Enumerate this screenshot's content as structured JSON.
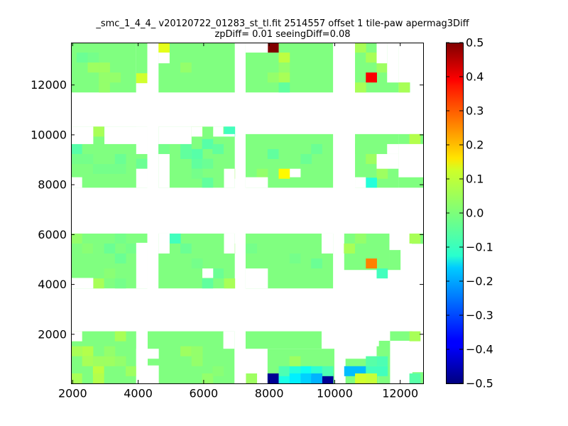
{
  "chart_data": {
    "type": "heatmap",
    "title": "_smc_1_4_4_ v20120722_01283_st_tl.fit 2514557 offset 1 tile-paw apermag3Diff",
    "subtitle": "zpDiff= 0.01 seeingDiff=0.08",
    "xlim": [
      1950,
      12700
    ],
    "ylim": [
      30,
      13700
    ],
    "x_ticks": [
      2000,
      4000,
      6000,
      8000,
      10000,
      12000
    ],
    "y_ticks": [
      2000,
      4000,
      6000,
      8000,
      10000,
      12000
    ],
    "cell_size": [
      340,
      400
    ],
    "colorbar": {
      "range": [
        -0.5,
        0.5
      ],
      "ticks": [
        0.5,
        0.4,
        0.3,
        0.2,
        0.1,
        0.0,
        -0.1,
        -0.2,
        -0.3,
        -0.4,
        -0.5
      ],
      "tick_labels": [
        "0.5",
        "0.4",
        "0.3",
        "0.2",
        "0.1",
        "0.0",
        "−0.1",
        "−0.2",
        "−0.3",
        "−0.4",
        "−0.5"
      ],
      "colormap": "jet"
    },
    "grid": false,
    "background_value": 0.0,
    "coverage": [
      {
        "x": [
          1950,
          3940
        ],
        "y": [
          30,
          2120
        ]
      },
      {
        "x": [
          4290,
          6940
        ],
        "y": [
          30,
          2120
        ]
      },
      {
        "x": [
          7950,
          9990
        ],
        "y": [
          30,
          1420
        ]
      },
      {
        "x": [
          7280,
          9600
        ],
        "y": [
          1420,
          2120
        ]
      },
      {
        "x": [
          10330,
          11350
        ],
        "y": [
          30,
          1020
        ]
      },
      {
        "x": [
          11350,
          11690
        ],
        "y": [
          30,
          1740
        ]
      },
      {
        "x": [
          11690,
          12370
        ],
        "y": [
          1740,
          2120
        ]
      },
      {
        "x": [
          12370,
          12700
        ],
        "y": [
          30,
          480
        ]
      },
      {
        "x": [
          1950,
          4280
        ],
        "y": [
          3840,
          6040
        ]
      },
      {
        "x": [
          4620,
          6950
        ],
        "y": [
          3840,
          6040
        ]
      },
      {
        "x": [
          7280,
          9950
        ],
        "y": [
          3840,
          6040
        ]
      },
      {
        "x": [
          10290,
          11670
        ],
        "y": [
          4580,
          6040
        ]
      },
      {
        "x": [
          11670,
          12010
        ],
        "y": [
          4580,
          5380
        ]
      },
      {
        "x": [
          12350,
          12700
        ],
        "y": [
          5630,
          6040
        ]
      },
      {
        "x": [
          1950,
          4280
        ],
        "y": [
          7880,
          10330
        ]
      },
      {
        "x": [
          4620,
          6950
        ],
        "y": [
          7880,
          10330
        ]
      },
      {
        "x": [
          7280,
          9950
        ],
        "y": [
          7880,
          10030
        ]
      },
      {
        "x": [
          10620,
          11950
        ],
        "y": [
          7880,
          10030
        ]
      },
      {
        "x": [
          11950,
          12700
        ],
        "y": [
          7880,
          8300
        ]
      },
      {
        "x": [
          11950,
          12700
        ],
        "y": [
          9630,
          10030
        ]
      },
      {
        "x": [
          1950,
          3940
        ],
        "y": [
          11700,
          13700
        ]
      },
      {
        "x": [
          4620,
          6950
        ],
        "y": [
          11700,
          13700
        ]
      },
      {
        "x": [
          7280,
          9950
        ],
        "y": [
          11700,
          13700
        ]
      },
      {
        "x": [
          10620,
          11950
        ],
        "y": [
          11700,
          13700
        ]
      },
      {
        "x": [
          11950,
          12300
        ],
        "y": [
          11700,
          12100
        ]
      },
      {
        "x": [
          3940,
          4280
        ],
        "y": [
          12070,
          13700
        ]
      }
    ],
    "gaps": [
      {
        "x": [
          1950,
          2290
        ],
        "y": [
          1720,
          2120
        ]
      },
      {
        "x": [
          3940,
          4290
        ],
        "y": [
          1020,
          1420
        ]
      },
      {
        "x": [
          3940,
          4290
        ],
        "y": [
          30,
          1020
        ]
      },
      {
        "x": [
          4290,
          4630
        ],
        "y": [
          1020,
          1420
        ]
      },
      {
        "x": [
          4290,
          4630
        ],
        "y": [
          30,
          750
        ]
      },
      {
        "x": [
          6600,
          6940
        ],
        "y": [
          1420,
          2120
        ]
      },
      {
        "x": [
          1950,
          2630
        ],
        "y": [
          3840,
          4260
        ]
      },
      {
        "x": [
          3940,
          4280
        ],
        "y": [
          3840,
          5670
        ]
      },
      {
        "x": [
          4620,
          4960
        ],
        "y": [
          5240,
          6040
        ]
      },
      {
        "x": [
          5960,
          6290
        ],
        "y": [
          4260,
          4640
        ]
      },
      {
        "x": [
          6620,
          6950
        ],
        "y": [
          5240,
          6040
        ]
      },
      {
        "x": [
          7280,
          7960
        ],
        "y": [
          3840,
          4640
        ]
      },
      {
        "x": [
          9600,
          9950
        ],
        "y": [
          5240,
          6040
        ]
      },
      {
        "x": [
          1950,
          2290
        ],
        "y": [
          7880,
          8300
        ]
      },
      {
        "x": [
          3940,
          4280
        ],
        "y": [
          7880,
          8640
        ]
      },
      {
        "x": [
          3940,
          4280
        ],
        "y": [
          9230,
          10330
        ]
      },
      {
        "x": [
          4620,
          4960
        ],
        "y": [
          7880,
          9230
        ]
      },
      {
        "x": [
          6620,
          6950
        ],
        "y": [
          7880,
          8640
        ]
      },
      {
        "x": [
          7280,
          7960
        ],
        "y": [
          7880,
          8300
        ]
      },
      {
        "x": [
          8630,
          8960
        ],
        "y": [
          8300,
          8640
        ]
      },
      {
        "x": [
          1950,
          2630
        ],
        "y": [
          9630,
          10330
        ]
      },
      {
        "x": [
          2970,
          4280
        ],
        "y": [
          9630,
          10330
        ]
      },
      {
        "x": [
          4620,
          5630
        ],
        "y": [
          9630,
          10330
        ]
      },
      {
        "x": [
          5630,
          5960
        ],
        "y": [
          9930,
          10330
        ]
      },
      {
        "x": [
          6290,
          6600
        ],
        "y": [
          9930,
          10330
        ]
      },
      {
        "x": [
          6600,
          6950
        ],
        "y": [
          9930,
          10030
        ]
      },
      {
        "x": [
          10620,
          10950
        ],
        "y": [
          7880,
          8300
        ]
      },
      {
        "x": [
          11280,
          11950
        ],
        "y": [
          8640,
          9230
        ]
      },
      {
        "x": [
          11950,
          12700
        ],
        "y": [
          8300,
          9630
        ]
      },
      {
        "x": [
          11600,
          11950
        ],
        "y": [
          9230,
          9630
        ]
      },
      {
        "x": [
          3940,
          4280
        ],
        "y": [
          11700,
          12070
        ]
      },
      {
        "x": [
          4280,
          4620
        ],
        "y": [
          11700,
          13700
        ]
      },
      {
        "x": [
          4620,
          4960
        ],
        "y": [
          12870,
          13300
        ]
      },
      {
        "x": [
          7280,
          7960
        ],
        "y": [
          13300,
          13700
        ]
      },
      {
        "x": [
          11600,
          11950
        ],
        "y": [
          12100,
          13700
        ]
      },
      {
        "x": [
          11280,
          11600
        ],
        "y": [
          12870,
          13700
        ]
      },
      {
        "x": [
          12300,
          12700
        ],
        "y": [
          11700,
          12100
        ]
      }
    ],
    "cells": [
      {
        "x": 2290,
        "y": 13500,
        "v": 0.0
      },
      {
        "x": 2290,
        "y": 13100,
        "v": -0.02
      },
      {
        "x": 2630,
        "y": 13100,
        "v": -0.01
      },
      {
        "x": 2630,
        "y": 12700,
        "v": 0.03
      },
      {
        "x": 2970,
        "y": 12700,
        "v": 0.03
      },
      {
        "x": 2970,
        "y": 12300,
        "v": 0.02
      },
      {
        "x": 2970,
        "y": 11900,
        "v": 0.02
      },
      {
        "x": 3300,
        "y": 12300,
        "v": 0.02
      },
      {
        "x": 4110,
        "y": 12270,
        "v": 0.08
      },
      {
        "x": 4790,
        "y": 13500,
        "v": 0.1
      },
      {
        "x": 5460,
        "y": 12700,
        "v": 0.02
      },
      {
        "x": 8120,
        "y": 13500,
        "v": 0.5
      },
      {
        "x": 8460,
        "y": 13100,
        "v": 0.06
      },
      {
        "x": 8460,
        "y": 12700,
        "v": 0.02
      },
      {
        "x": 8460,
        "y": 12300,
        "v": 0.04
      },
      {
        "x": 8120,
        "y": 12300,
        "v": 0.02
      },
      {
        "x": 8460,
        "y": 11900,
        "v": -0.03
      },
      {
        "x": 10790,
        "y": 13500,
        "v": 0.04
      },
      {
        "x": 11120,
        "y": 13100,
        "v": 0.04
      },
      {
        "x": 11120,
        "y": 12300,
        "v": 0.38
      },
      {
        "x": 11450,
        "y": 12700,
        "v": 0.03
      },
      {
        "x": 10790,
        "y": 11900,
        "v": 0.04
      },
      {
        "x": 12120,
        "y": 11900,
        "v": 0.04
      },
      {
        "x": 2790,
        "y": 10130,
        "v": 0.04
      },
      {
        "x": 2120,
        "y": 9430,
        "v": -0.04
      },
      {
        "x": 2120,
        "y": 9030,
        "v": -0.01
      },
      {
        "x": 2460,
        "y": 9030,
        "v": -0.01
      },
      {
        "x": 2790,
        "y": 8630,
        "v": -0.01
      },
      {
        "x": 3130,
        "y": 8630,
        "v": -0.01
      },
      {
        "x": 3460,
        "y": 9030,
        "v": -0.02
      },
      {
        "x": 3460,
        "y": 8630,
        "v": -0.01
      },
      {
        "x": 4110,
        "y": 8840,
        "v": -0.02
      },
      {
        "x": 4790,
        "y": 9430,
        "v": -0.01
      },
      {
        "x": 5460,
        "y": 9630,
        "v": -0.03
      },
      {
        "x": 5460,
        "y": 9230,
        "v": -0.03
      },
      {
        "x": 5800,
        "y": 9230,
        "v": -0.04
      },
      {
        "x": 5800,
        "y": 8840,
        "v": -0.03
      },
      {
        "x": 5800,
        "y": 8440,
        "v": -0.01
      },
      {
        "x": 6120,
        "y": 8840,
        "v": -0.02
      },
      {
        "x": 6120,
        "y": 8080,
        "v": -0.03
      },
      {
        "x": 5800,
        "y": 10130,
        "v": 0.03
      },
      {
        "x": 6120,
        "y": 9630,
        "v": -0.04
      },
      {
        "x": 6440,
        "y": 9430,
        "v": -0.03
      },
      {
        "x": 6790,
        "y": 10130,
        "v": -0.06
      },
      {
        "x": 6790,
        "y": 8440,
        "v": 0.03
      },
      {
        "x": 7460,
        "y": 8440,
        "v": 0.0
      },
      {
        "x": 7790,
        "y": 8440,
        "v": 0.02
      },
      {
        "x": 8460,
        "y": 8440,
        "v": 0.13
      },
      {
        "x": 8120,
        "y": 9230,
        "v": -0.03
      },
      {
        "x": 9130,
        "y": 9030,
        "v": -0.02
      },
      {
        "x": 9450,
        "y": 9430,
        "v": -0.02
      },
      {
        "x": 10790,
        "y": 9430,
        "v": 0.0
      },
      {
        "x": 11120,
        "y": 9030,
        "v": 0.03
      },
      {
        "x": 11450,
        "y": 8440,
        "v": 0.03
      },
      {
        "x": 11120,
        "y": 8080,
        "v": -0.09
      },
      {
        "x": 12450,
        "y": 9830,
        "v": 0.05
      },
      {
        "x": 2120,
        "y": 5840,
        "v": 0.02
      },
      {
        "x": 2460,
        "y": 5440,
        "v": 0.01
      },
      {
        "x": 2790,
        "y": 5440,
        "v": 0.0
      },
      {
        "x": 3130,
        "y": 5440,
        "v": -0.02
      },
      {
        "x": 3460,
        "y": 5840,
        "v": -0.01
      },
      {
        "x": 3460,
        "y": 5040,
        "v": -0.02
      },
      {
        "x": 3790,
        "y": 5440,
        "v": -0.01
      },
      {
        "x": 2790,
        "y": 4040,
        "v": 0.04
      },
      {
        "x": 3130,
        "y": 4440,
        "v": 0.01
      },
      {
        "x": 3460,
        "y": 4040,
        "v": -0.01
      },
      {
        "x": 5130,
        "y": 5840,
        "v": -0.06
      },
      {
        "x": 5460,
        "y": 5440,
        "v": -0.02
      },
      {
        "x": 5800,
        "y": 4840,
        "v": -0.01
      },
      {
        "x": 6120,
        "y": 4040,
        "v": -0.03
      },
      {
        "x": 6440,
        "y": 4440,
        "v": -0.02
      },
      {
        "x": 6790,
        "y": 4040,
        "v": 0.04
      },
      {
        "x": 6790,
        "y": 5440,
        "v": 0.02
      },
      {
        "x": 7460,
        "y": 5440,
        "v": -0.01
      },
      {
        "x": 8120,
        "y": 5040,
        "v": 0.0
      },
      {
        "x": 8790,
        "y": 5040,
        "v": -0.01
      },
      {
        "x": 9130,
        "y": 4440,
        "v": 0.0
      },
      {
        "x": 9450,
        "y": 4840,
        "v": -0.02
      },
      {
        "x": 10450,
        "y": 5440,
        "v": 0.04
      },
      {
        "x": 10790,
        "y": 5840,
        "v": 0.02
      },
      {
        "x": 11120,
        "y": 4840,
        "v": 0.25
      },
      {
        "x": 11450,
        "y": 4440,
        "v": -0.06
      },
      {
        "x": 12450,
        "y": 5840,
        "v": 0.04
      },
      {
        "x": 2120,
        "y": 1920,
        "v": 0.04
      },
      {
        "x": 2120,
        "y": 1320,
        "v": 0.04
      },
      {
        "x": 2460,
        "y": 1320,
        "v": 0.05
      },
      {
        "x": 2460,
        "y": 920,
        "v": 0.04
      },
      {
        "x": 2790,
        "y": 920,
        "v": 0.03
      },
      {
        "x": 2790,
        "y": 520,
        "v": 0.06
      },
      {
        "x": 2120,
        "y": 230,
        "v": 0.04
      },
      {
        "x": 2790,
        "y": 230,
        "v": 0.05
      },
      {
        "x": 3130,
        "y": 920,
        "v": 0.03
      },
      {
        "x": 3130,
        "y": 1320,
        "v": 0.02
      },
      {
        "x": 3460,
        "y": 1920,
        "v": 0.04
      },
      {
        "x": 3460,
        "y": 920,
        "v": 0.02
      },
      {
        "x": 3790,
        "y": 520,
        "v": 0.03
      },
      {
        "x": 5460,
        "y": 1320,
        "v": 0.03
      },
      {
        "x": 5800,
        "y": 920,
        "v": 0.02
      },
      {
        "x": 5800,
        "y": 1320,
        "v": 0.02
      },
      {
        "x": 6120,
        "y": 230,
        "v": 0.02
      },
      {
        "x": 6440,
        "y": 520,
        "v": 0.01
      },
      {
        "x": 7460,
        "y": 230,
        "v": 0.03
      },
      {
        "x": 8120,
        "y": 230,
        "v": -0.48
      },
      {
        "x": 8460,
        "y": 230,
        "v": -0.1
      },
      {
        "x": 8460,
        "y": 520,
        "v": -0.05
      },
      {
        "x": 8790,
        "y": 520,
        "v": -0.09
      },
      {
        "x": 8790,
        "y": 230,
        "v": -0.14
      },
      {
        "x": 9130,
        "y": 520,
        "v": -0.11
      },
      {
        "x": 9130,
        "y": 230,
        "v": -0.17
      },
      {
        "x": 9450,
        "y": 520,
        "v": -0.08
      },
      {
        "x": 9450,
        "y": 230,
        "v": -0.2
      },
      {
        "x": 9790,
        "y": 230,
        "v": -0.48
      },
      {
        "x": 9790,
        "y": 520,
        "v": -0.05
      },
      {
        "x": 10460,
        "y": 520,
        "v": -0.19
      },
      {
        "x": 10790,
        "y": 520,
        "v": -0.19
      },
      {
        "x": 11120,
        "y": 520,
        "v": -0.06
      },
      {
        "x": 11450,
        "y": 520,
        "v": -0.06
      },
      {
        "x": 11450,
        "y": 920,
        "v": -0.05
      },
      {
        "x": 11120,
        "y": 920,
        "v": -0.04
      },
      {
        "x": 11450,
        "y": 1320,
        "v": 0.0
      },
      {
        "x": 11120,
        "y": 230,
        "v": 0.07
      },
      {
        "x": 10790,
        "y": 230,
        "v": 0.08
      },
      {
        "x": 12450,
        "y": 230,
        "v": -0.04
      },
      {
        "x": 12450,
        "y": 1920,
        "v": 0.04
      },
      {
        "x": 8790,
        "y": 920,
        "v": 0.03
      }
    ]
  }
}
